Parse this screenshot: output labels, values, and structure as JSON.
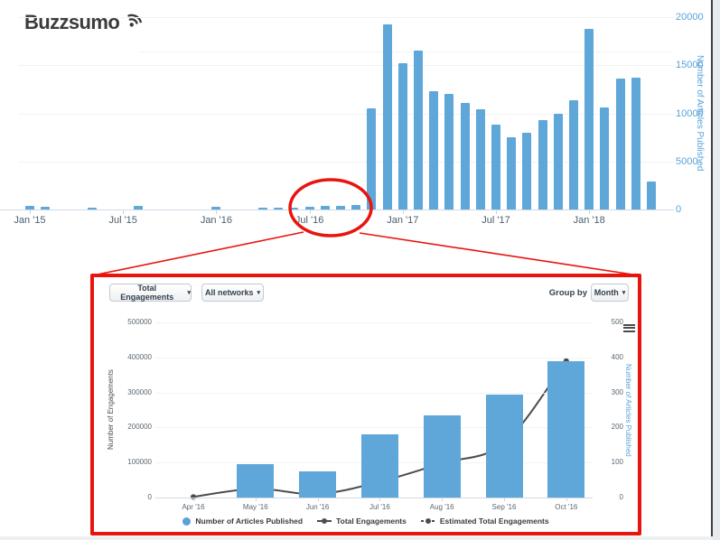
{
  "logo": {
    "text": "Buzzsumo"
  },
  "inset": {
    "toolbar": {
      "total_engagements": "Total Engagements",
      "all_networks": "All networks",
      "group_by_label": "Group by",
      "group_by_value": "Month",
      "caret": "▾"
    },
    "legend": [
      {
        "marker": "circle",
        "label": "Number of Articles Published"
      },
      {
        "marker": "line-dot",
        "label": "Total Engagements"
      },
      {
        "marker": "dash-dot",
        "label": "Estimated Total Engagements"
      }
    ]
  },
  "annotation": {
    "shape": "ellipse-callout",
    "highlighted_region": "Jul '16",
    "color": "#e8140d"
  },
  "colors": {
    "bar_blue": "#5ea7d8",
    "axis_blue": "#58a2d8",
    "line_dark": "#4d4d4d",
    "annotation_red": "#e8140d"
  },
  "chart_data": [
    {
      "type": "bar",
      "title": "",
      "ylabel": "Number of Articles Published",
      "ylim": [
        0,
        20000
      ],
      "yticks": [
        "0",
        "5000",
        "10000",
        "15000",
        "20000"
      ],
      "xticks": [
        "Jan '15",
        "Jul '15",
        "Jan '16",
        "Jul '16",
        "Jan '17",
        "Jul '17",
        "Jan '18"
      ],
      "categories": [
        "Jan '15",
        "Feb '15",
        "Mar '15",
        "Apr '15",
        "May '15",
        "Jun '15",
        "Jul '15",
        "Aug '15",
        "Sep '15",
        "Oct '15",
        "Nov '15",
        "Dec '15",
        "Jan '16",
        "Feb '16",
        "Mar '16",
        "Apr '16",
        "May '16",
        "Jun '16",
        "Jul '16",
        "Aug '16",
        "Sep '16",
        "Oct '16",
        "Nov '16",
        "Dec '16",
        "Jan '17",
        "Feb '17",
        "Mar '17",
        "Apr '17",
        "May '17",
        "Jun '17",
        "Jul '17",
        "Aug '17",
        "Sep '17",
        "Oct '17",
        "Nov '17",
        "Dec '17",
        "Jan '18",
        "Feb '18",
        "Mar '18",
        "Apr '18",
        "May '18"
      ],
      "values": [
        400,
        250,
        0,
        0,
        200,
        0,
        0,
        350,
        0,
        0,
        0,
        0,
        250,
        0,
        0,
        200,
        150,
        200,
        250,
        350,
        400,
        500,
        10500,
        19300,
        15200,
        16500,
        12300,
        12000,
        11100,
        10400,
        8800,
        7500,
        8000,
        9300,
        10000,
        11400,
        18800,
        10600,
        13600,
        13700,
        2900
      ]
    },
    {
      "type": "bar+line",
      "title": "",
      "ylabel_left": "Number of Engagements",
      "ylabel_right": "Number of Articles Published",
      "ylim_left": [
        0,
        500000
      ],
      "ylim_right": [
        0,
        500
      ],
      "yticks_left": [
        "0",
        "100000",
        "200000",
        "300000",
        "400000",
        "500000"
      ],
      "yticks_right": [
        "0",
        "100",
        "200",
        "300",
        "400",
        "500"
      ],
      "categories": [
        "Apr '16",
        "May '16",
        "Jun '16",
        "Jul '16",
        "Aug '16",
        "Sep '16",
        "Oct '16"
      ],
      "series": [
        {
          "name": "Number of Articles Published",
          "type": "bar",
          "axis": "right",
          "values": [
            0,
            95,
            75,
            180,
            235,
            295,
            390
          ]
        },
        {
          "name": "Total Engagements",
          "type": "line",
          "axis": "left",
          "values": [
            2000,
            25000,
            10000,
            45000,
            98000,
            155000,
            390000
          ]
        },
        {
          "name": "Estimated Total Engagements",
          "type": "line-dashed",
          "axis": "left",
          "values": []
        }
      ],
      "legend_position": "bottom",
      "grid": true
    }
  ]
}
